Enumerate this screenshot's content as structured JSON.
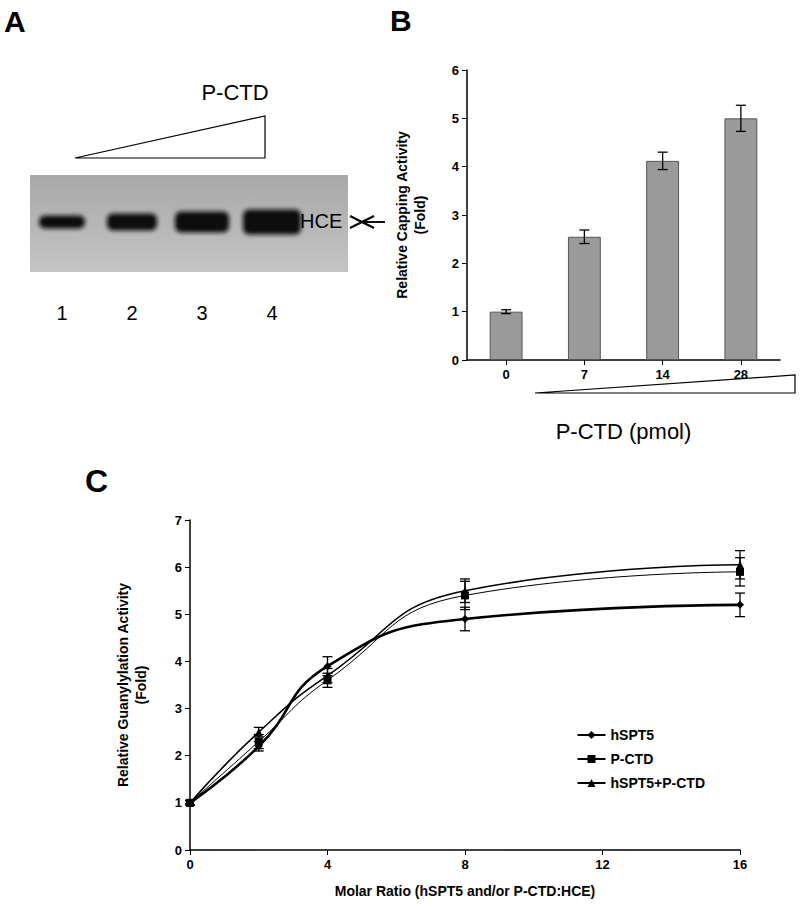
{
  "gel": {
    "title": "A",
    "gradient_label": "P-CTD",
    "band_label": "HCE",
    "lanes": [
      "1",
      "2",
      "3",
      "4"
    ]
  },
  "chart_data": [
    {
      "type": "bar",
      "title": "B",
      "categories": [
        "0",
        "7",
        "14",
        "28"
      ],
      "values": [
        1.0,
        2.55,
        4.12,
        5.0
      ],
      "errors": [
        0.04,
        0.14,
        0.18,
        0.27
      ],
      "color": "#9a9a9a",
      "xlabel": "P-CTD (pmol)",
      "ylabel": "Relative Capping Activity\n(Fold)",
      "ylim": [
        0,
        6
      ],
      "yticks": [
        0,
        1,
        2,
        3,
        4,
        5,
        6
      ],
      "grid": false
    },
    {
      "type": "line",
      "title": "C",
      "x": [
        0,
        2,
        4,
        8,
        16
      ],
      "series": [
        {
          "name": "hSPT5",
          "color": "#000000",
          "marker": "diamond",
          "values": [
            1.0,
            2.2,
            3.9,
            4.9,
            5.2
          ],
          "errors": [
            0.05,
            0.1,
            0.2,
            0.25,
            0.25
          ]
        },
        {
          "name": "P-CTD",
          "color": "#000000",
          "marker": "square",
          "values": [
            1.0,
            2.3,
            3.6,
            5.4,
            5.9
          ],
          "errors": [
            0.05,
            0.15,
            0.15,
            0.3,
            0.3
          ]
        },
        {
          "name": "hSPT5+P-CTD",
          "color": "#000000",
          "marker": "triangle",
          "values": [
            1.0,
            2.5,
            3.7,
            5.5,
            6.05
          ],
          "errors": [
            0.05,
            0.1,
            0.15,
            0.25,
            0.3
          ]
        }
      ],
      "xlabel": "Molar Ratio (hSPT5 and/or P-CTD:HCE)",
      "ylabel": "Relative Guanylylation Activity\n(Fold)",
      "xlim": [
        0,
        16
      ],
      "xticks": [
        0,
        4,
        8,
        12,
        16
      ],
      "ylim": [
        0,
        7
      ],
      "yticks": [
        0,
        1,
        2,
        3,
        4,
        5,
        6,
        7
      ],
      "legend": "lower right",
      "grid": false
    }
  ]
}
